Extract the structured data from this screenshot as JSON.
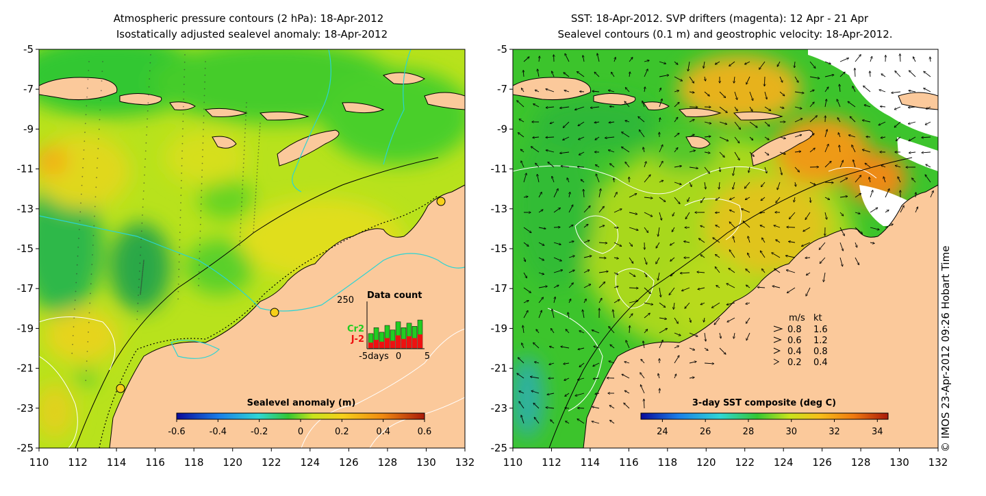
{
  "panels": [
    {
      "id": "sla",
      "title_lines": [
        "Atmospheric pressure contours (2 hPa): 18-Apr-2012",
        "Isostatically adjusted sealevel anomaly: 18-Apr-2012"
      ],
      "colorbar": {
        "label": "Sealevel anomaly (m)",
        "ticks": [
          "-0.6",
          "-0.4",
          "-0.2",
          "0",
          "0.2",
          "0.4",
          "0.6"
        ],
        "range": [
          -0.6,
          0.6
        ]
      },
      "inset": {
        "title": "Data count",
        "y_max_label": "250",
        "series": [
          {
            "name": "Cr2",
            "color": "#22cc22"
          },
          {
            "name": "J-2",
            "color": "#ee1111"
          }
        ],
        "x_labels": [
          "-5days",
          "0",
          "5"
        ],
        "green_values": [
          0.32,
          0.45,
          0.35,
          0.5,
          0.4,
          0.58,
          0.45,
          0.55,
          0.48,
          0.62
        ],
        "red_values": [
          0.12,
          0.18,
          0.14,
          0.22,
          0.16,
          0.28,
          0.2,
          0.26,
          0.22,
          0.3
        ]
      }
    },
    {
      "id": "sst",
      "title_lines": [
        "SST: 18-Apr-2012. SVP drifters (magenta): 12 Apr - 21 Apr",
        "Sealevel contours (0.1 m) and geostrophic velocity: 18-Apr-2012."
      ],
      "colorbar": {
        "label": "3-day SST composite (deg C)",
        "ticks": [
          "24",
          "26",
          "28",
          "30",
          "32",
          "34"
        ],
        "range": [
          23,
          34.5
        ]
      },
      "legend": {
        "header": [
          "m/s",
          "kt"
        ],
        "rows": [
          [
            "0.8",
            "1.6"
          ],
          [
            "0.6",
            "1.2"
          ],
          [
            "0.4",
            "0.8"
          ],
          [
            "0.2",
            "0.4"
          ]
        ]
      }
    }
  ],
  "axes": {
    "lat_ticks": [
      "-5",
      "-7",
      "-9",
      "-11",
      "-13",
      "-15",
      "-17",
      "-19",
      "-21",
      "-23",
      "-25"
    ],
    "lon_ticks": [
      "110",
      "112",
      "114",
      "116",
      "118",
      "120",
      "122",
      "124",
      "126",
      "128",
      "130",
      "132"
    ],
    "lon_range": [
      110,
      132
    ],
    "lat_range": [
      -25,
      -5
    ]
  },
  "credit": "© IMOS 23-Apr-2012 09:26 Hobart Time",
  "colors": {
    "land": "#fbc99b",
    "sla_base": "#b8e21c",
    "sst_base": "#3cc42c",
    "contour_cyan": "#2ad4d4",
    "magenta": "#ff00ff"
  }
}
